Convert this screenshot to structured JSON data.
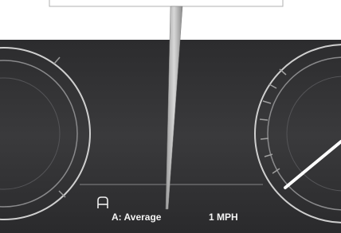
{
  "display": {
    "trip_label": "A: Average",
    "speed_reading": "1 MPH"
  }
}
